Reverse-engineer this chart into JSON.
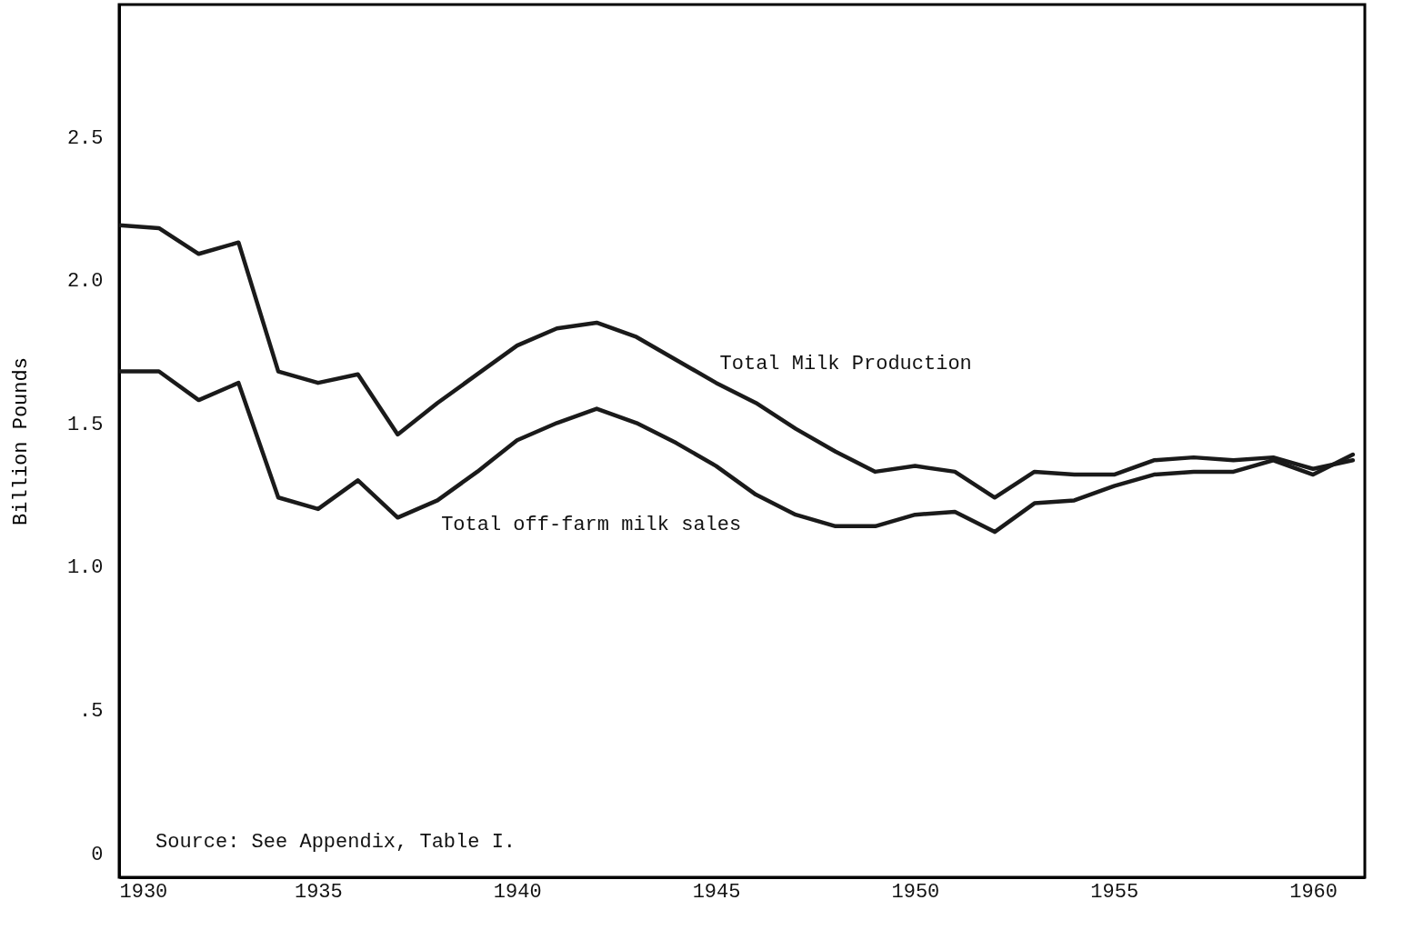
{
  "chart_data": {
    "type": "line",
    "ylabel": "Billion Pounds",
    "x": [
      1930,
      1931,
      1932,
      1933,
      1934,
      1935,
      1936,
      1937,
      1938,
      1939,
      1940,
      1941,
      1942,
      1943,
      1944,
      1945,
      1946,
      1947,
      1948,
      1949,
      1950,
      1951,
      1952,
      1953,
      1954,
      1955,
      1956,
      1957,
      1958,
      1959,
      1960,
      1961
    ],
    "series": [
      {
        "name": "Total Milk Production",
        "color": "#1a1a1a",
        "values": [
          2.19,
          2.18,
          2.09,
          2.13,
          1.68,
          1.64,
          1.67,
          1.46,
          1.57,
          1.67,
          1.77,
          1.83,
          1.85,
          1.8,
          1.72,
          1.64,
          1.57,
          1.48,
          1.4,
          1.33,
          1.35,
          1.33,
          1.24,
          1.33,
          1.32,
          1.32,
          1.37,
          1.38,
          1.37,
          1.38,
          1.34,
          1.37
        ]
      },
      {
        "name": "Total off-farm milk sales",
        "color": "#1a1a1a",
        "values": [
          1.68,
          1.68,
          1.58,
          1.64,
          1.24,
          1.2,
          1.3,
          1.17,
          1.23,
          1.33,
          1.44,
          1.5,
          1.55,
          1.5,
          1.43,
          1.35,
          1.25,
          1.18,
          1.14,
          1.14,
          1.18,
          1.19,
          1.12,
          1.22,
          1.23,
          1.28,
          1.32,
          1.33,
          1.33,
          1.37,
          1.32,
          1.39
        ]
      }
    ],
    "xlim": [
      1930,
      1961.3
    ],
    "xticks": [
      1930,
      1935,
      1940,
      1945,
      1950,
      1955,
      1960
    ],
    "ylim": [
      -0.085,
      2.96
    ],
    "yticks": [
      0,
      {
        "value": 0.5,
        "label": ".5"
      },
      {
        "value": 1,
        "label": "1.0"
      },
      1.5,
      {
        "value": 2,
        "label": "2.0"
      },
      2.5
    ],
    "grid": false,
    "legend": false,
    "marker": "none",
    "line_style": "solid",
    "annotations": [
      "Source:  See Appendix, Table I."
    ]
  }
}
